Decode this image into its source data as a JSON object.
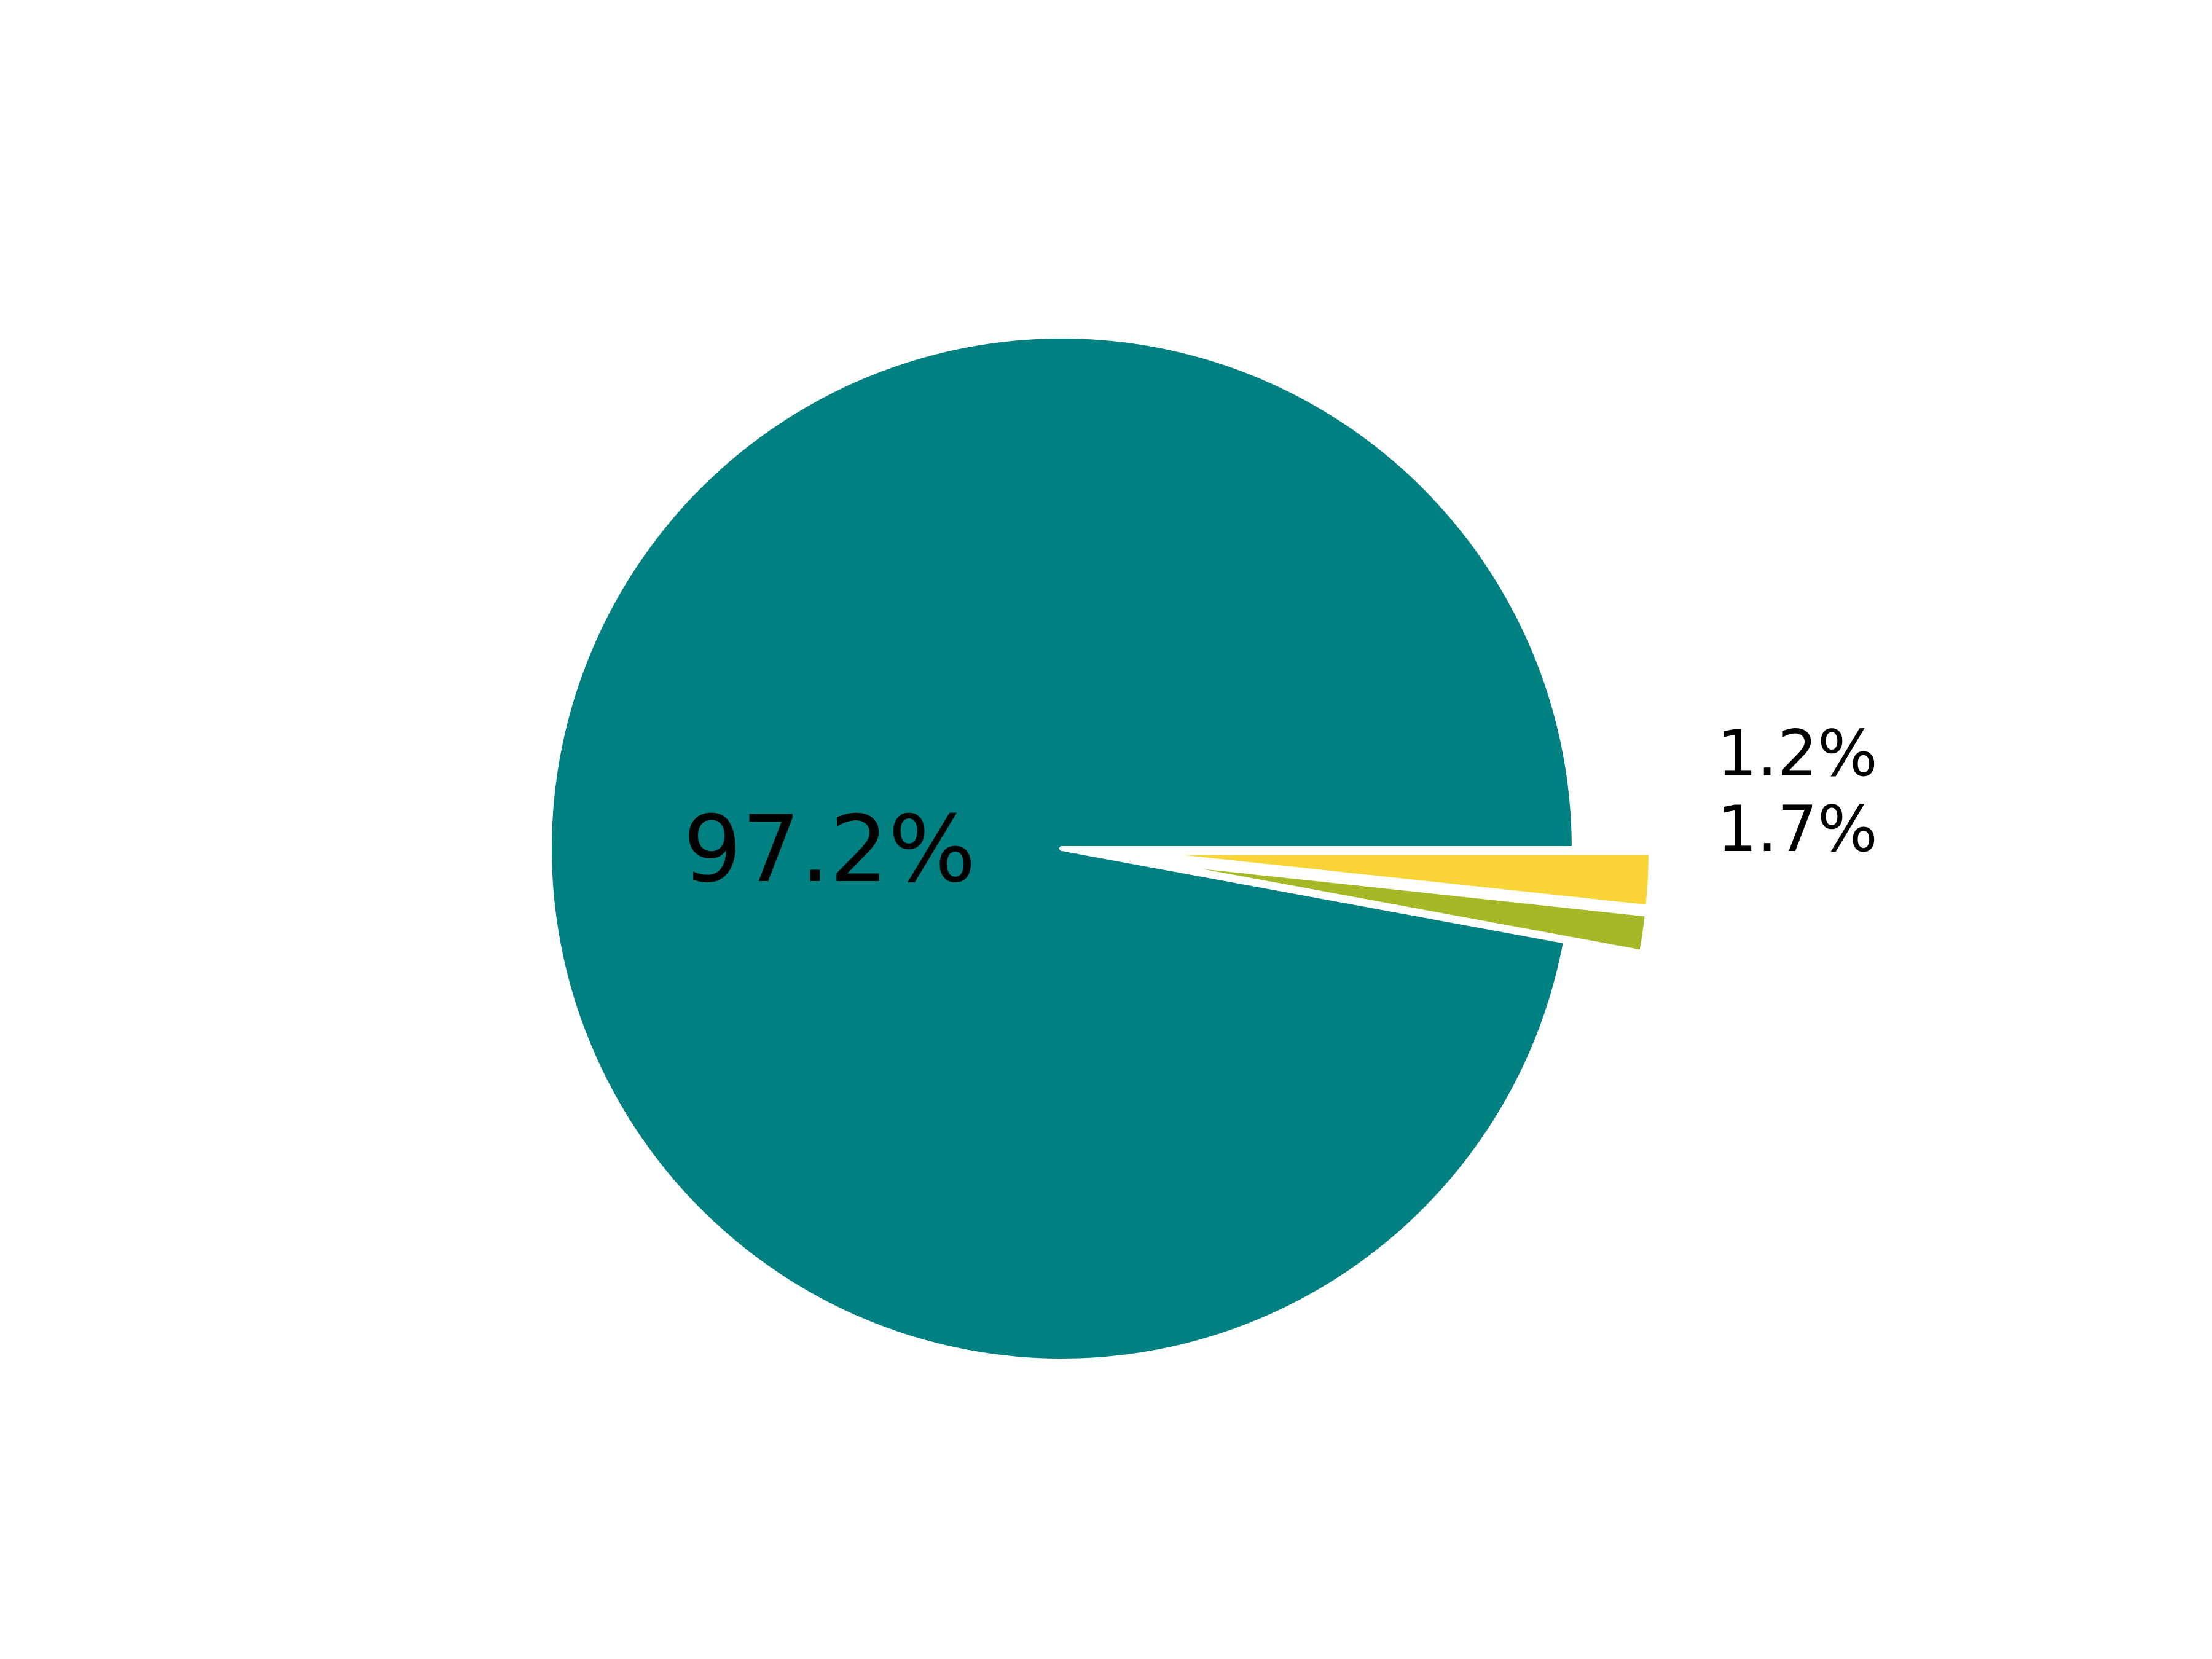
{
  "chart_data": {
    "type": "pie",
    "title": "",
    "slices": [
      {
        "value": 97.2,
        "label": "97.2%",
        "color": "#008080",
        "exploded": false
      },
      {
        "value": 1.2,
        "label": "1.2%",
        "color": "#a5b927",
        "exploded": true
      },
      {
        "value": 1.7,
        "label": "1.7%",
        "color": "#f8d436",
        "exploded": true
      }
    ],
    "start_angle_deg": 0,
    "direction": "counterclockwise",
    "legend": "none"
  }
}
